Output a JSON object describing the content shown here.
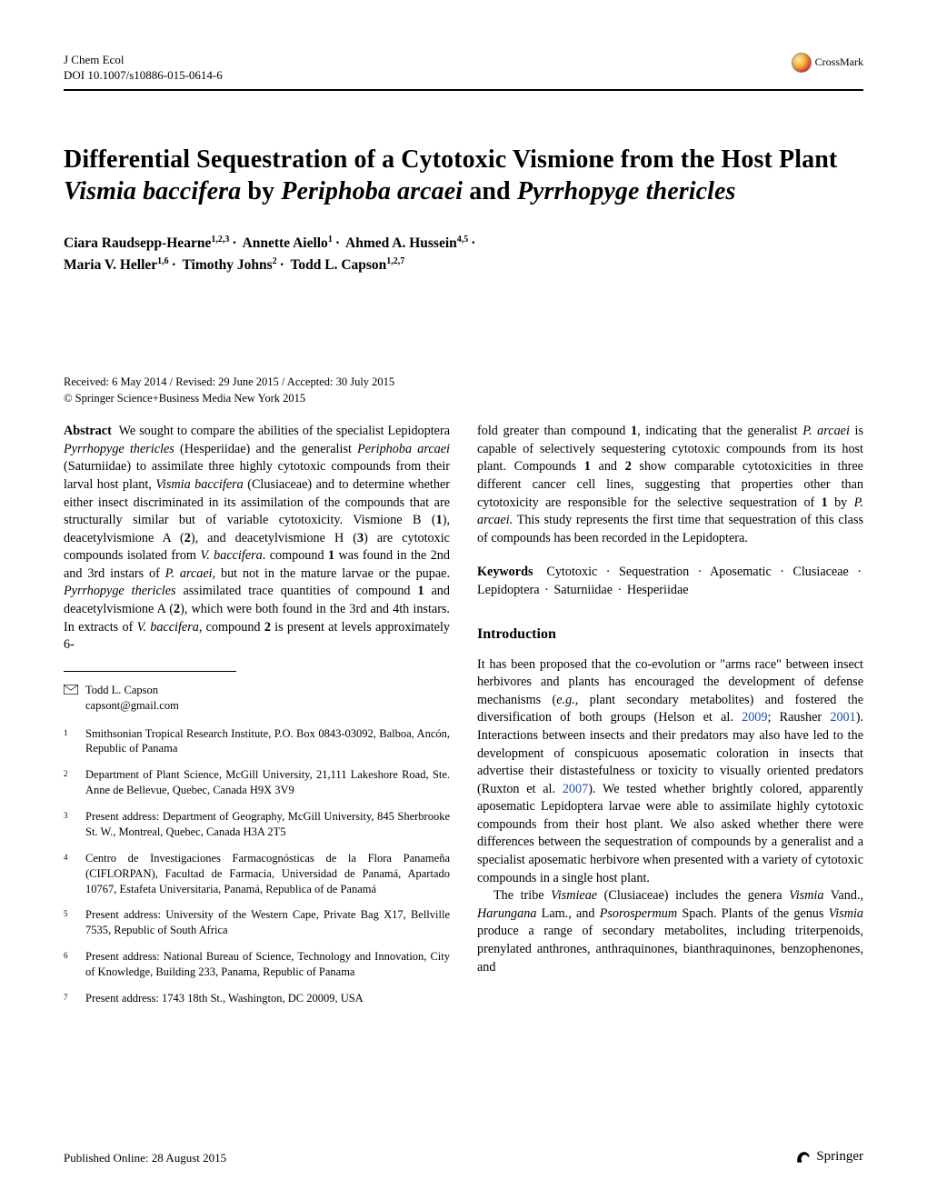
{
  "header": {
    "journal": "J Chem Ecol",
    "doi": "DOI 10.1007/s10886-015-0614-6",
    "crossmark_label": "CrossMark"
  },
  "title": {
    "pre": "Differential Sequestration of a Cytotoxic Vismione from the Host Plant ",
    "it1": "Vismia baccifera",
    "mid1": " by ",
    "it2": "Periphoba arcaei",
    "mid2": " and ",
    "it3": "Pyrrhopyge thericles"
  },
  "authors": [
    {
      "name": "Ciara Raudsepp-Hearne",
      "aff": "1,2,3"
    },
    {
      "name": "Annette Aiello",
      "aff": "1"
    },
    {
      "name": "Ahmed A. Hussein",
      "aff": "4,5"
    },
    {
      "name": "Maria V. Heller",
      "aff": "1,6"
    },
    {
      "name": "Timothy Johns",
      "aff": "2"
    },
    {
      "name": "Todd L. Capson",
      "aff": "1,2,7"
    }
  ],
  "dates": {
    "received": "Received: 6 May 2014 / Revised: 29 June 2015 / Accepted: 30 July 2015",
    "copyright": "© Springer Science+Business Media New York 2015"
  },
  "abstract": {
    "heading": "Abstract",
    "left": "We sought to compare the abilities of the specialist Lepidoptera Pyrrhopyge thericles (Hesperiidae) and the generalist Periphoba arcaei (Saturniidae) to assimilate three highly cytotoxic compounds from their larval host plant, Vismia baccifera (Clusiaceae) and to determine whether either insect discriminated in its assimilation of the compounds that are structurally similar but of variable cytotoxicity. Vismione B (1), deacetylvismione A (2), and deacetylvismione H (3) are cytotoxic compounds isolated from V. baccifera. Compound 1 was found in the 2nd and 3rd instars of P. arcaei, but not in the mature larvae or the pupae. Pyrrhopyge thericles assimilated trace quantities of compound 1 and deacetylvismione A (2), which were both found in the 3rd and 4th instars. In extracts of V. baccifera, compound 2 is present at levels approximately 6-",
    "right": "fold greater than compound 1, indicating that the generalist P. arcaei is capable of selectively sequestering cytotoxic compounds from its host plant. Compounds 1 and 2 show comparable cytotoxicities in three different cancer cell lines, suggesting that properties other than cytotoxicity are responsible for the selective sequestration of 1 by P. arcaei. This study represents the first time that sequestration of this class of compounds has been recorded in the Lepidoptera."
  },
  "keywords": {
    "heading": "Keywords",
    "items": [
      "Cytotoxic",
      "Sequestration",
      "Aposematic",
      "Clusiaceae",
      "Lepidoptera",
      "Saturniidae",
      "Hesperiidae"
    ]
  },
  "introduction": {
    "heading": "Introduction",
    "para1_a": "It has been proposed that the co-evolution or \"arms race\" between insect herbivores and plants has encouraged the development of defense mechanisms (",
    "para1_eg": "e.g.",
    "para1_b": ", plant secondary metabolites) and fostered the diversification of both groups (Helson et al. ",
    "cite1": "2009",
    "para1_c": "; Rausher ",
    "cite2": "2001",
    "para1_d": "). Interactions between insects and their predators may also have led to the development of conspicuous aposematic coloration in insects that advertise their distastefulness or toxicity to visually oriented predators (Ruxton et al. ",
    "cite3": "2007",
    "para1_e": "). We tested whether brightly colored, apparently aposematic Lepidoptera larvae were able to assimilate highly cytotoxic compounds from their host plant. We also asked whether there were differences between the sequestration of compounds by a generalist and a specialist aposematic herbivore when presented with a variety of cytotoxic compounds in a single host plant.",
    "para2_a": "The tribe ",
    "para2_it1": "Vismieae",
    "para2_b": " (Clusiaceae) includes the genera ",
    "para2_it2": "Vismia",
    "para2_c": " Vand., ",
    "para2_it3": "Harungana",
    "para2_d": " Lam., and ",
    "para2_it4": "Psorospermum",
    "para2_e": " Spach. Plants of the genus ",
    "para2_it5": "Vismia",
    "para2_f": " produce a range of secondary metabolites, including triterpenoids, prenylated anthrones, anthraquinones, bianthraquinones, benzophenones, and"
  },
  "correspondence": {
    "name": "Todd L. Capson",
    "email": "capsont@gmail.com"
  },
  "affiliations": [
    "Smithsonian Tropical Research Institute, P.O. Box 0843-03092, Balboa, Ancón, Republic of Panama",
    "Department of Plant Science, McGill University, 21,111 Lakeshore Road, Ste. Anne de Bellevue, Quebec, Canada H9X 3V9",
    "Present address: Department of Geography, McGill University, 845 Sherbrooke St. W., Montreal, Quebec, Canada H3A 2T5",
    "Centro de Investigaciones Farmacognósticas de la Flora Panameña (CIFLORPAN), Facultad de Farmacia, Universidad de Panamá, Apartado 10767, Estafeta Universitaria, Panamá, Republica of de Panamá",
    "Present address: University of the Western Cape, Private Bag X17, Bellville 7535, Republic of South Africa",
    "Present address: National Bureau of Science, Technology and Innovation, City of Knowledge, Building 233, Panama, Republic of Panama",
    "Present address: 1743 18th St., Washington, DC 20009, USA"
  ],
  "footer": {
    "published": "Published Online: 28 August 2015",
    "publisher": "Springer"
  },
  "colors": {
    "text": "#000000",
    "link": "#1a4fb3",
    "background": "#ffffff",
    "rule": "#000000"
  },
  "typography": {
    "title_fontsize": 28,
    "author_fontsize": 15.5,
    "body_fontsize": 14.2,
    "footnote_fontsize": 12.5,
    "header_fontsize": 13
  }
}
